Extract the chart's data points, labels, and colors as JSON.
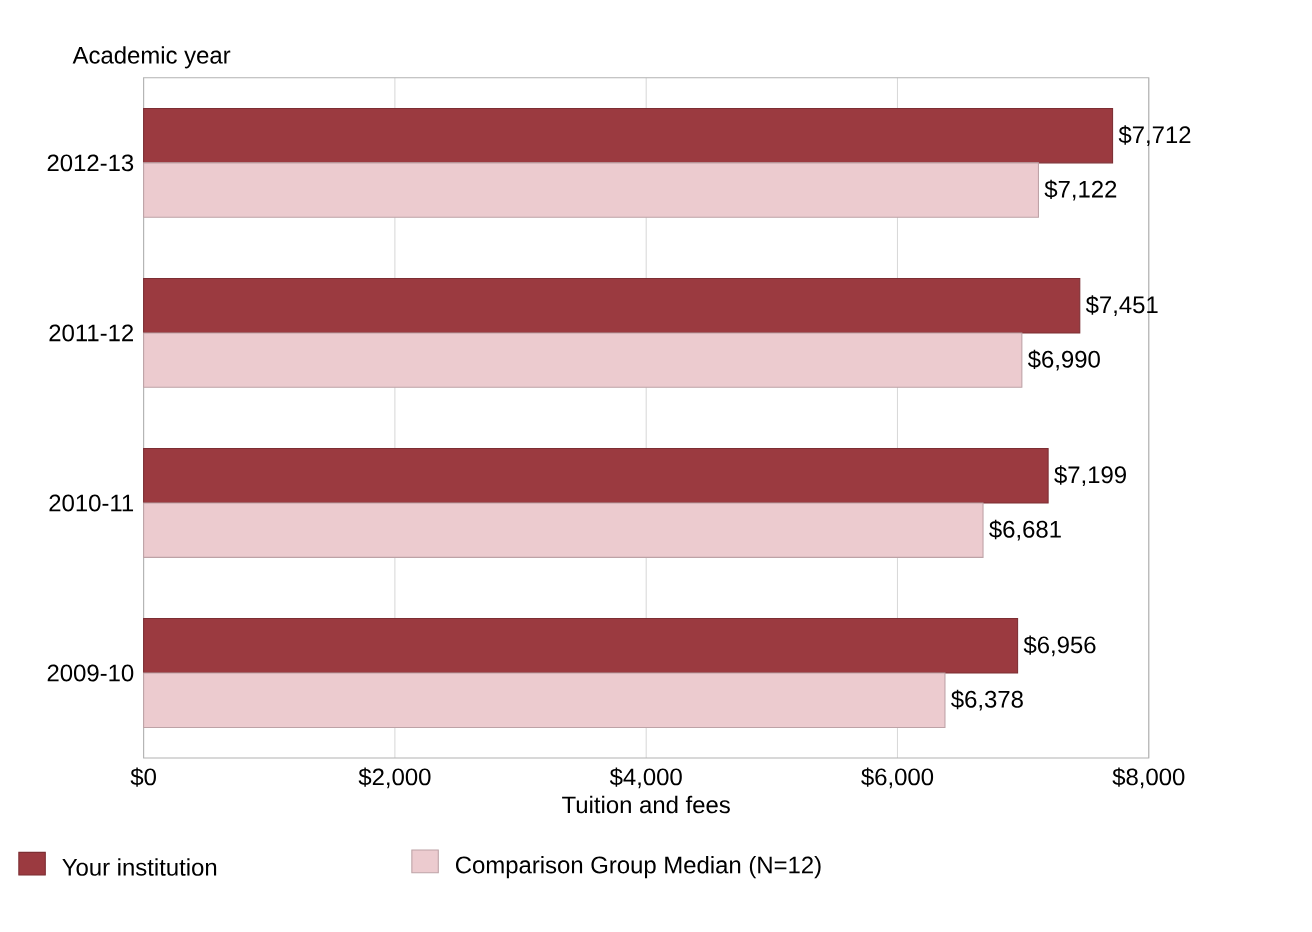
{
  "chart_data": {
    "type": "bar",
    "orientation": "horizontal",
    "ylabel": "Academic year",
    "xlabel": "Tuition and fees",
    "categories": [
      "2012-13",
      "2011-12",
      "2010-11",
      "2009-10"
    ],
    "series": [
      {
        "name": "Your institution",
        "color": "#9b3a40",
        "values": [
          7712,
          7451,
          7199,
          6956
        ],
        "value_labels": [
          "$7,712",
          "$7,451",
          "$7,199",
          "$6,956"
        ]
      },
      {
        "name": "Comparison Group Median (N=12)",
        "color": "#eccbcf",
        "values": [
          7122,
          6990,
          6681,
          6378
        ],
        "value_labels": [
          "$7,122",
          "$6,990",
          "$6,681",
          "$6,378"
        ]
      }
    ],
    "xlim": [
      0,
      8000
    ],
    "xticks": [
      {
        "value": 0,
        "label": "$0"
      },
      {
        "value": 2000,
        "label": "$2,000"
      },
      {
        "value": 4000,
        "label": "$4,000"
      },
      {
        "value": 6000,
        "label": "$6,000"
      },
      {
        "value": 8000,
        "label": "$8,000"
      }
    ],
    "grid": "x",
    "legend": "bottom"
  }
}
